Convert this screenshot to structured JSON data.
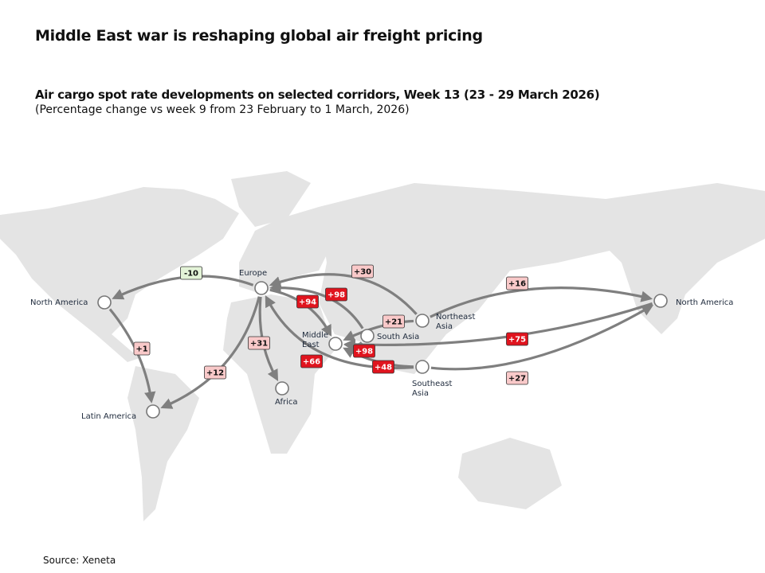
{
  "title": "Middle East war is reshaping global air freight pricing",
  "subtitle": "Air cargo spot rate developments on selected corridors, Week 13 (23 - 29 March 2026)",
  "note": "(Percentage change vs week 9 from 23 February to 1 March, 2026)",
  "source": "Source: Xeneta",
  "colors": {
    "strong_increase": "#e0141e",
    "increase": "#f9c9c9",
    "decrease": "#e3f3d7",
    "arrow": "#808080",
    "land": "#e4e4e4"
  },
  "nodes": [
    {
      "id": "europe",
      "label": [
        "Europe"
      ]
    },
    {
      "id": "na_w",
      "label": [
        "North America"
      ]
    },
    {
      "id": "latam",
      "label": [
        "Latin America"
      ]
    },
    {
      "id": "africa",
      "label": [
        "Africa"
      ]
    },
    {
      "id": "me",
      "label": [
        "Middle",
        "East"
      ]
    },
    {
      "id": "sa",
      "label": [
        "South Asia"
      ]
    },
    {
      "id": "nea",
      "label": [
        "Northeast",
        "Asia"
      ]
    },
    {
      "id": "sea",
      "label": [
        "Southeast",
        "Asia"
      ]
    },
    {
      "id": "na_e",
      "label": [
        "North America"
      ]
    }
  ],
  "corridors": [
    {
      "from": "europe",
      "to": "na_w",
      "change": "-10",
      "level": "decrease"
    },
    {
      "from": "na_w",
      "to": "latam",
      "change": "+1",
      "level": "increase"
    },
    {
      "from": "europe",
      "to": "latam",
      "change": "+12",
      "level": "increase"
    },
    {
      "from": "europe",
      "to": "africa",
      "change": "+31",
      "level": "increase"
    },
    {
      "from": "nea",
      "to": "europe",
      "change": "+30",
      "level": "increase"
    },
    {
      "from": "sa",
      "to": "europe",
      "change": "+98",
      "level": "strong_increase"
    },
    {
      "from": "europe",
      "to": "me",
      "change": "+94",
      "level": "strong_increase"
    },
    {
      "from": "nea",
      "to": "me",
      "change": "+21",
      "level": "increase"
    },
    {
      "from": "sa",
      "to": "me",
      "change": "+98",
      "level": "strong_increase"
    },
    {
      "from": "sea",
      "to": "me",
      "change": "+48",
      "level": "strong_increase"
    },
    {
      "from": "sea",
      "to": "europe",
      "change": "+66",
      "level": "strong_increase"
    },
    {
      "from": "nea",
      "to": "na_e",
      "change": "+16",
      "level": "increase"
    },
    {
      "from": "na_e",
      "to": "me",
      "change": "+75",
      "level": "strong_increase"
    },
    {
      "from": "sea",
      "to": "na_e",
      "change": "+27",
      "level": "increase"
    }
  ]
}
